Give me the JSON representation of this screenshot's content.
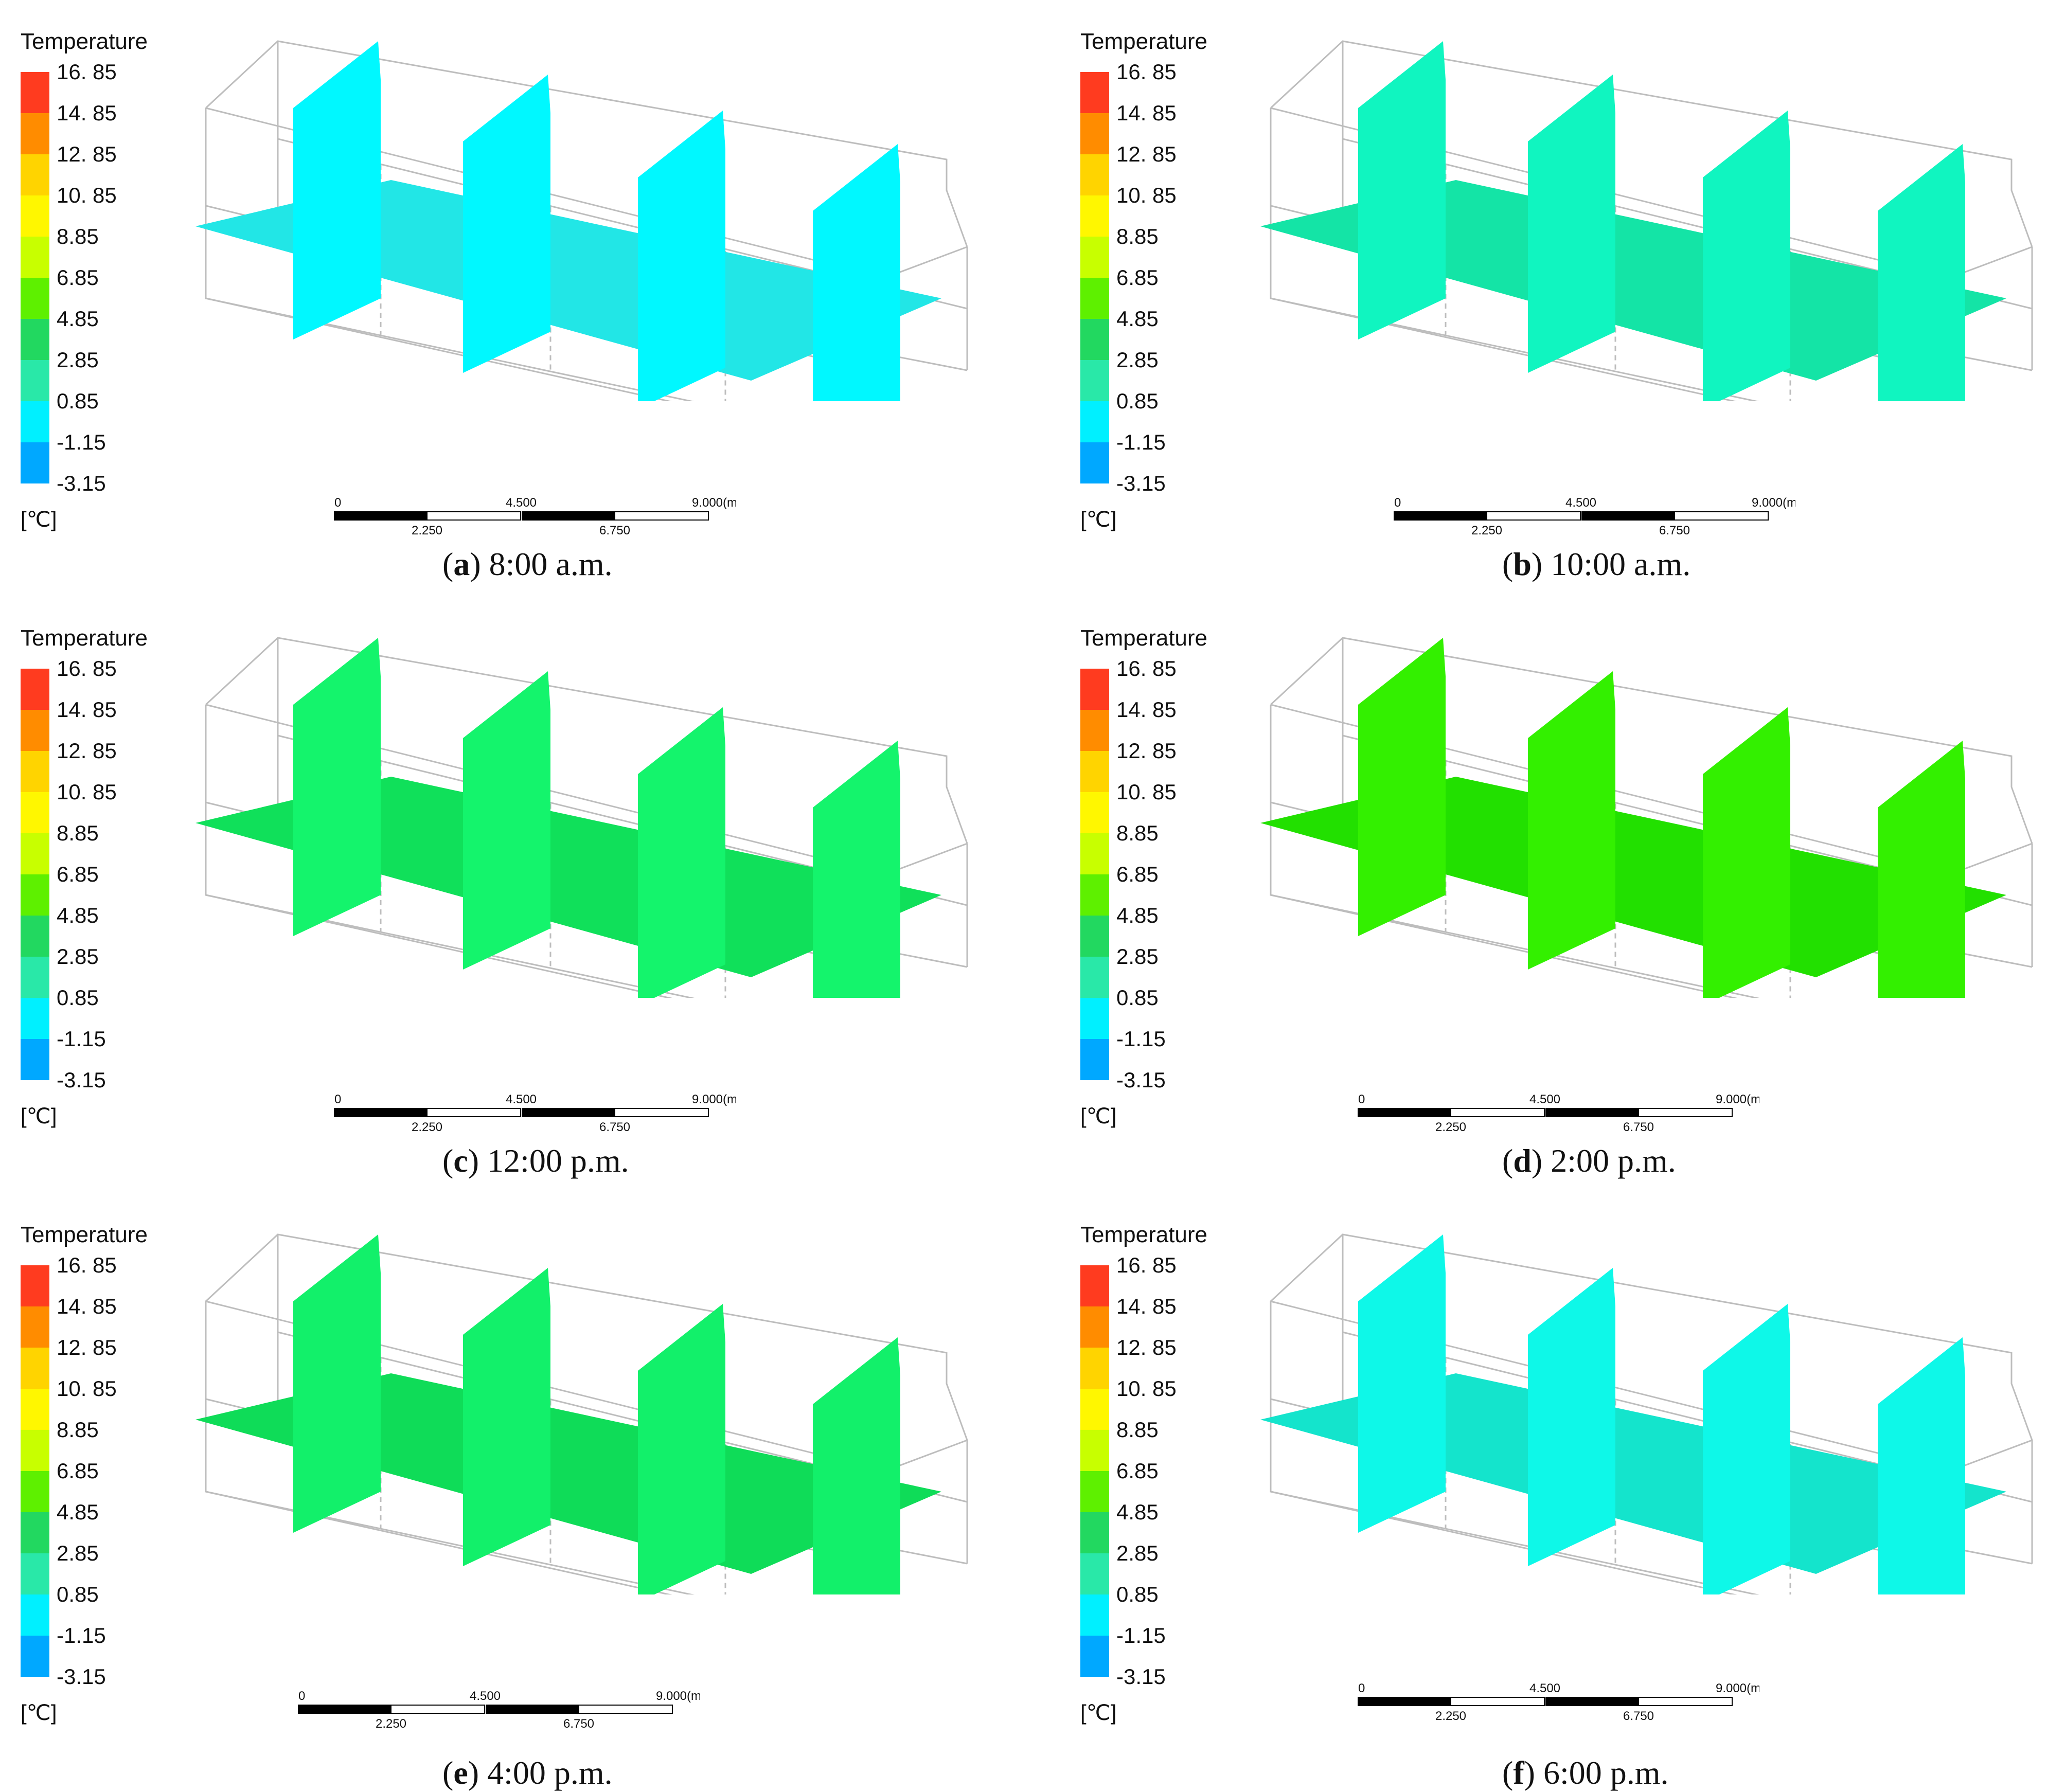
{
  "legend": {
    "title": "Temperature",
    "unit": "[℃]",
    "labels": [
      "16. 85",
      "14. 85",
      "12. 85",
      "10. 85",
      "8.85",
      "6.85",
      "4.85",
      "2.85",
      "0.85",
      "-1.15",
      "-3.15"
    ],
    "colors": [
      "#ff3b1f",
      "#ff8c00",
      "#ffd400",
      "#fff700",
      "#c8ff00",
      "#5ef000",
      "#22d860",
      "#29e8a8",
      "#00f0ff",
      "#00a8ff",
      "#1040ff"
    ]
  },
  "scale_bar": {
    "top_ticks": [
      "0",
      "4.500",
      "9.000"
    ],
    "bottom_ticks": [
      "2.250",
      "6.750"
    ],
    "unit": "(m)"
  },
  "panels": [
    {
      "letter": "a",
      "time": "8:00 a.m.",
      "wall_color": "#00f8ff",
      "floor_color": "#22e6e6"
    },
    {
      "letter": "b",
      "time": "10:00 a.m.",
      "wall_color": "#10f5c0",
      "floor_color": "#14e4a6"
    },
    {
      "letter": "c",
      "time": "12:00 p.m.",
      "wall_color": "#14f46c",
      "floor_color": "#10e05a"
    },
    {
      "letter": "d",
      "time": "2:00 p.m.",
      "wall_color": "#33f000",
      "floor_color": "#22e000"
    },
    {
      "letter": "e",
      "time": "4:00 p.m.",
      "wall_color": "#12f06a",
      "floor_color": "#0fdc58"
    },
    {
      "letter": "f",
      "time": "6:00 p.m.",
      "wall_color": "#0ef8e8",
      "floor_color": "#14e4cc"
    }
  ]
}
